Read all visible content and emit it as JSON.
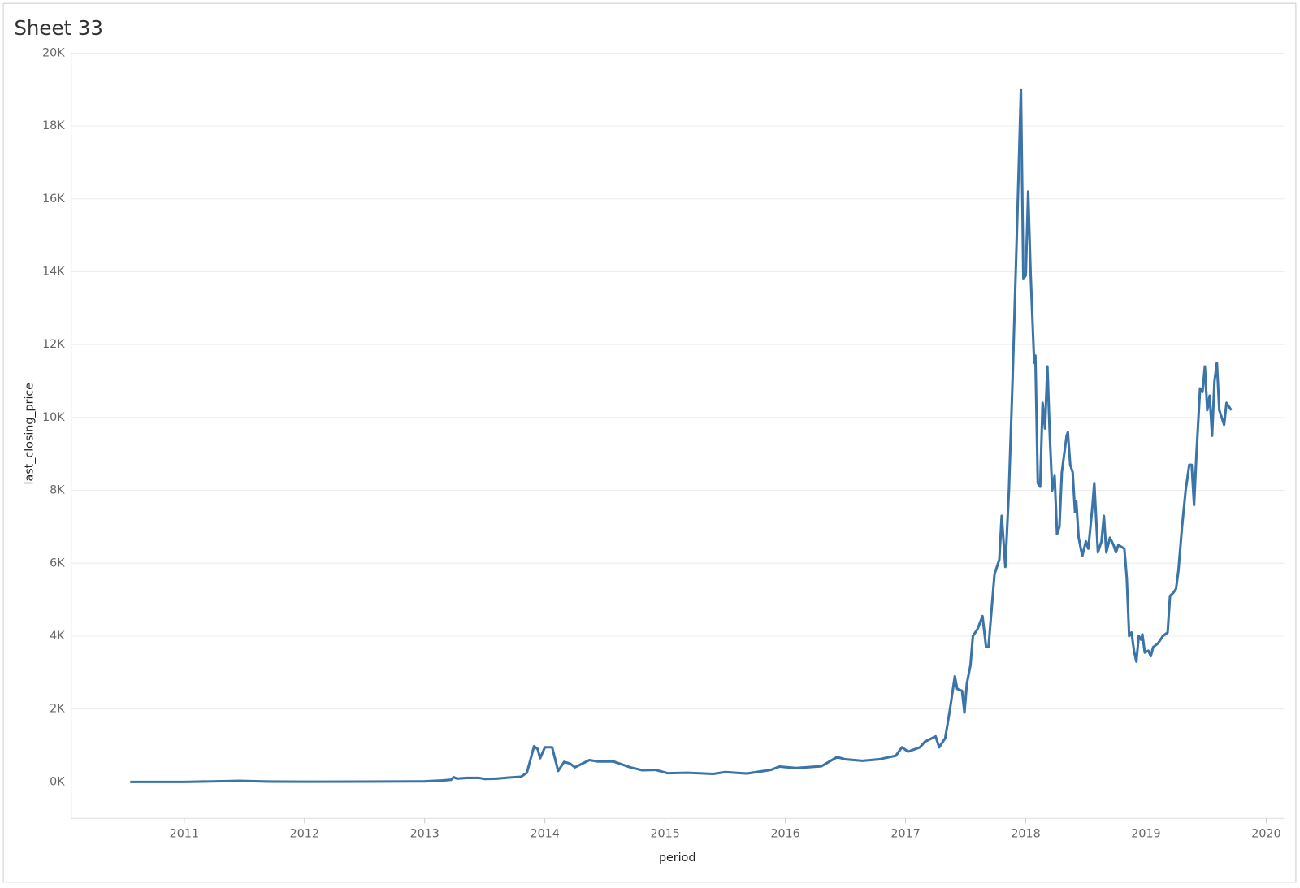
{
  "chart_data": {
    "type": "line",
    "title": "Sheet 33",
    "x_label": "period",
    "y_label": "last_closing_price",
    "xlim": [
      2010.06,
      2020.15
    ],
    "xticks": [
      2011,
      2012,
      2013,
      2014,
      2015,
      2016,
      2017,
      2018,
      2019,
      2020
    ],
    "ylim": [
      -1000,
      20000
    ],
    "yticks": [
      {
        "value": 0,
        "label": "0K"
      },
      {
        "value": 2000,
        "label": "2K"
      },
      {
        "value": 4000,
        "label": "4K"
      },
      {
        "value": 6000,
        "label": "6K"
      },
      {
        "value": 8000,
        "label": "8K"
      },
      {
        "value": 10000,
        "label": "10K"
      },
      {
        "value": 12000,
        "label": "12K"
      },
      {
        "value": 14000,
        "label": "14K"
      },
      {
        "value": 16000,
        "label": "16K"
      },
      {
        "value": 18000,
        "label": "18K"
      },
      {
        "value": 20000,
        "label": "20K"
      }
    ],
    "grid": true,
    "zero_line": true,
    "series": [
      {
        "name": "last_closing_price",
        "color": "#3a74a9",
        "x": [
          2010.55,
          2011.0,
          2011.4,
          2011.45,
          2011.7,
          2012.0,
          2012.5,
          2013.0,
          2013.15,
          2013.22,
          2013.24,
          2013.27,
          2013.35,
          2013.45,
          2013.5,
          2013.6,
          2013.7,
          2013.8,
          2013.85,
          2013.91,
          2013.94,
          2013.96,
          2014.0,
          2014.06,
          2014.11,
          2014.16,
          2014.21,
          2014.25,
          2014.37,
          2014.44,
          2014.57,
          2014.71,
          2014.81,
          2014.92,
          2015.02,
          2015.19,
          2015.4,
          2015.5,
          2015.68,
          2015.88,
          2015.95,
          2016.09,
          2016.3,
          2016.43,
          2016.5,
          2016.64,
          2016.78,
          2016.92,
          2016.97,
          2017.02,
          2017.12,
          2017.16,
          2017.25,
          2017.28,
          2017.33,
          2017.37,
          2017.41,
          2017.43,
          2017.47,
          2017.49,
          2017.51,
          2017.54,
          2017.56,
          2017.6,
          2017.64,
          2017.67,
          2017.69,
          2017.71,
          2017.74,
          2017.78,
          2017.8,
          2017.83,
          2017.86,
          2017.89,
          2017.93,
          2017.96,
          2017.98,
          2018.0,
          2018.02,
          2018.04,
          2018.07,
          2018.08,
          2018.1,
          2018.12,
          2018.14,
          2018.16,
          2018.18,
          2018.2,
          2018.22,
          2018.24,
          2018.26,
          2018.28,
          2018.3,
          2018.32,
          2018.34,
          2018.35,
          2018.37,
          2018.39,
          2018.41,
          2018.42,
          2018.44,
          2018.47,
          2018.5,
          2018.52,
          2018.55,
          2018.57,
          2018.6,
          2018.63,
          2018.65,
          2018.67,
          2018.7,
          2018.73,
          2018.75,
          2018.77,
          2018.82,
          2018.84,
          2018.86,
          2018.88,
          2018.9,
          2018.92,
          2018.94,
          2018.96,
          2018.97,
          2018.99,
          2019.02,
          2019.04,
          2019.06,
          2019.1,
          2019.14,
          2019.18,
          2019.2,
          2019.23,
          2019.25,
          2019.27,
          2019.3,
          2019.33,
          2019.36,
          2019.38,
          2019.4,
          2019.42,
          2019.45,
          2019.47,
          2019.49,
          2019.51,
          2019.53,
          2019.55,
          2019.57,
          2019.59,
          2019.61,
          2019.63,
          2019.65,
          2019.67,
          2019.69,
          2019.71
        ],
        "values": [
          0,
          0,
          25,
          30,
          10,
          5,
          8,
          15,
          40,
          60,
          130,
          90,
          110,
          110,
          80,
          90,
          120,
          140,
          250,
          980,
          900,
          650,
          950,
          950,
          300,
          550,
          500,
          400,
          600,
          560,
          560,
          400,
          320,
          330,
          240,
          250,
          220,
          270,
          230,
          330,
          420,
          380,
          430,
          680,
          620,
          580,
          620,
          720,
          950,
          830,
          950,
          1100,
          1250,
          950,
          1200,
          2000,
          2900,
          2550,
          2500,
          1900,
          2700,
          3200,
          4000,
          4200,
          4550,
          3700,
          3700,
          4500,
          5700,
          6100,
          7300,
          5900,
          8000,
          11000,
          15500,
          19000,
          13800,
          13900,
          16200,
          14000,
          11500,
          11700,
          8200,
          8100,
          10400,
          9700,
          11400,
          9500,
          8000,
          8400,
          6800,
          7000,
          8500,
          9000,
          9500,
          9600,
          8700,
          8500,
          7400,
          7700,
          6700,
          6200,
          6600,
          6400,
          7400,
          8200,
          6300,
          6600,
          7300,
          6300,
          6700,
          6500,
          6300,
          6500,
          6400,
          5600,
          4000,
          4100,
          3600,
          3300,
          4000,
          3900,
          4050,
          3550,
          3600,
          3450,
          3700,
          3800,
          4000,
          4100,
          5100,
          5200,
          5300,
          5800,
          7000,
          8000,
          8700,
          8700,
          7600,
          9000,
          10800,
          10700,
          11400,
          10200,
          10600,
          9500,
          11000,
          11500,
          10200,
          10000,
          9800,
          10400,
          10300,
          10200
        ]
      }
    ]
  }
}
